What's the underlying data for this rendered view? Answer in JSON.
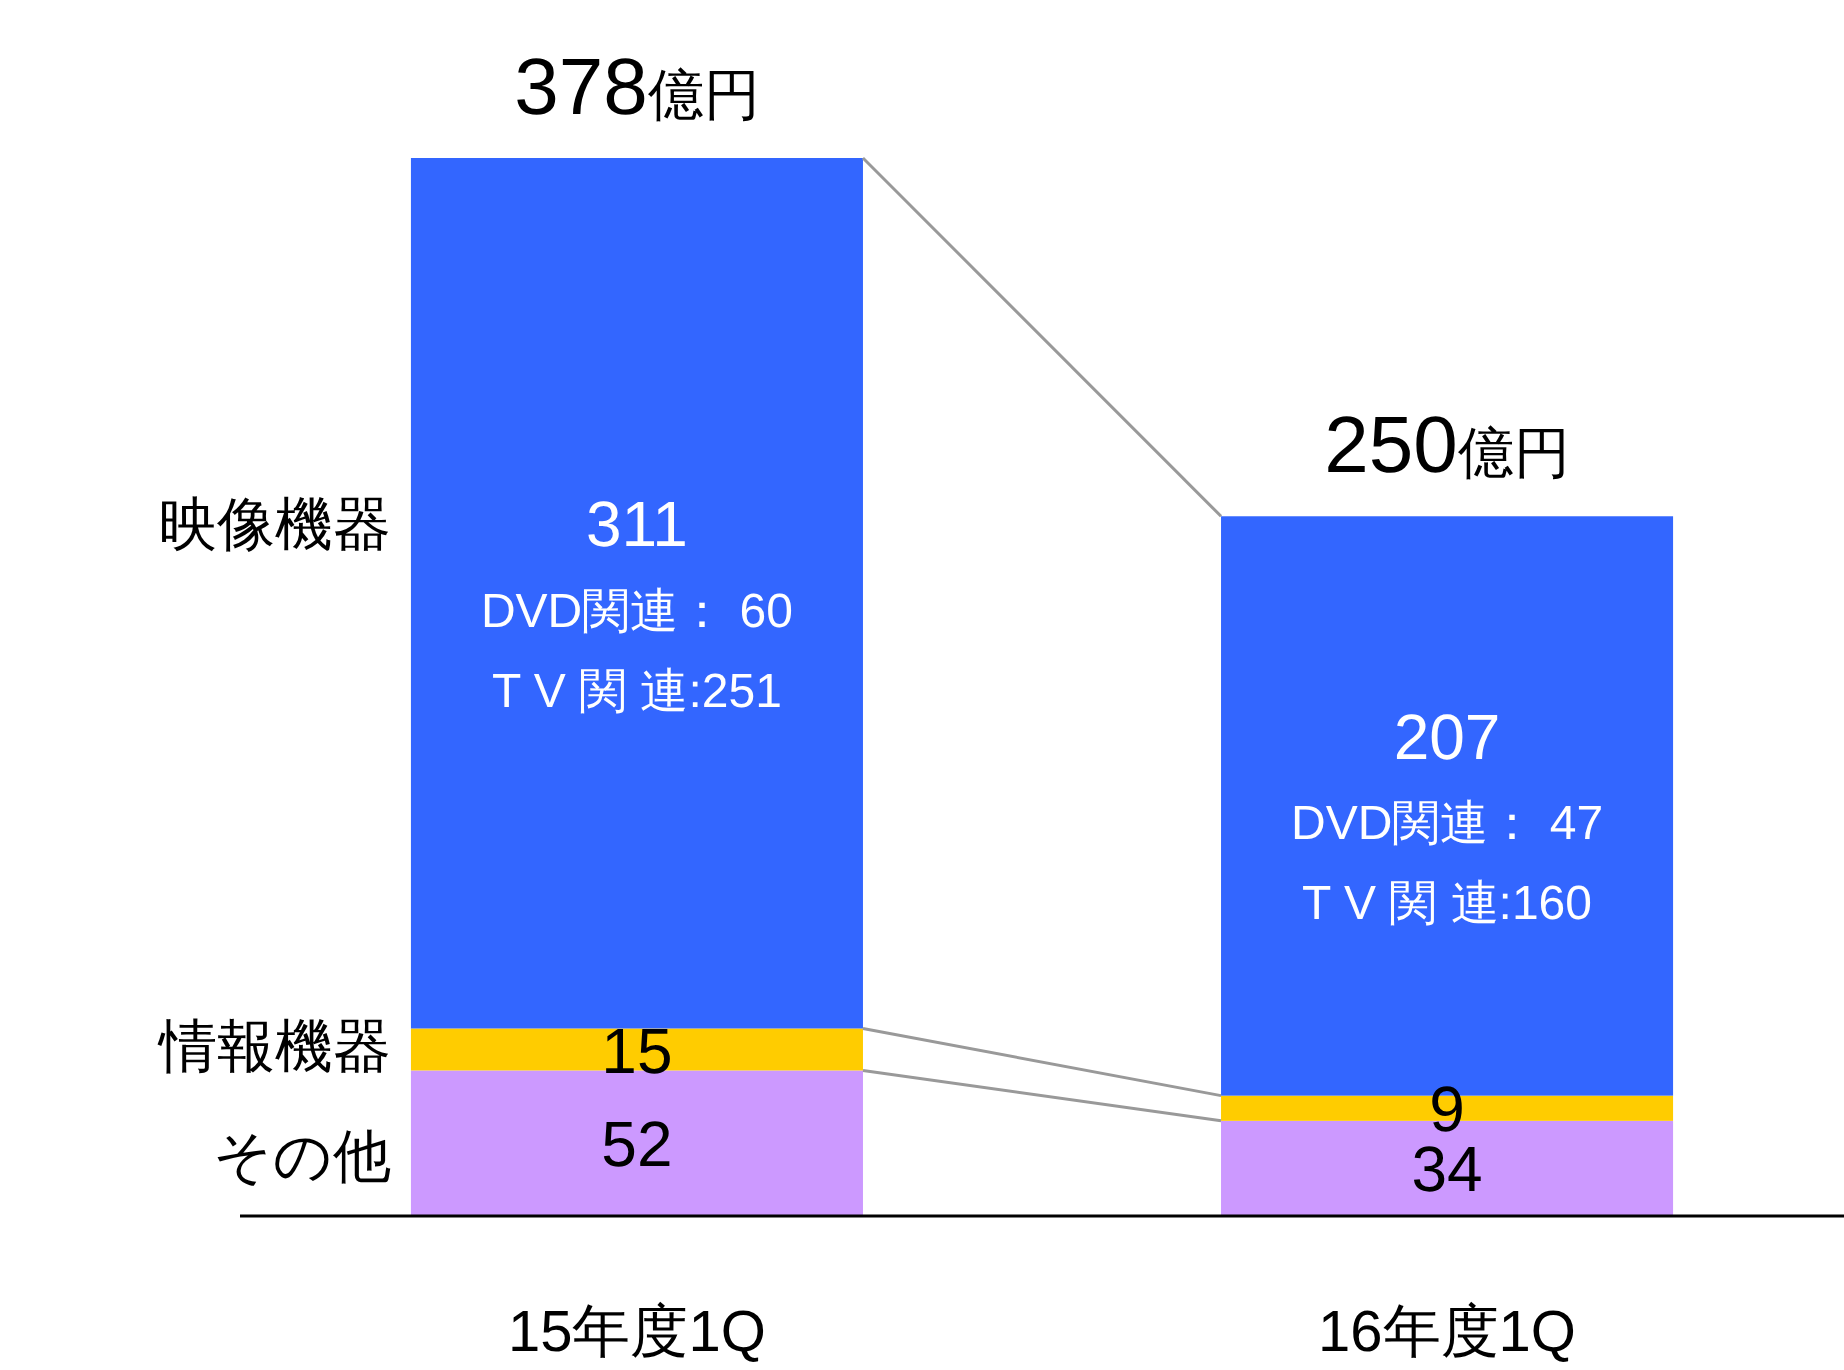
{
  "chart_data": {
    "type": "bar",
    "stacked": true,
    "categories": [
      "15年度1Q",
      "16年度1Q"
    ],
    "series": [
      {
        "name": "その他",
        "color": "#cc99ff",
        "values": [
          52,
          34
        ]
      },
      {
        "name": "情報機器",
        "color": "#ffcc00",
        "values": [
          15,
          9
        ]
      },
      {
        "name": "映像機器",
        "color": "#3366ff",
        "values": [
          311,
          207
        ]
      }
    ],
    "data_labels": true,
    "totals": [
      "378億円",
      "250億円"
    ],
    "annotations": [
      "DVD関連： 60",
      "T V 関 連:251",
      "DVD関連： 47",
      "T V 関 連:160"
    ]
  }
}
